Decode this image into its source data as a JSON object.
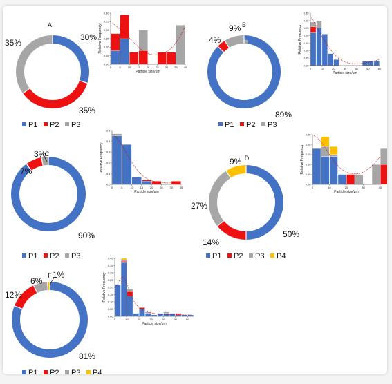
{
  "colors": {
    "P1": "#4472c4",
    "P2": "#ee1111",
    "P3": "#a6a6a6",
    "P4": "#ffc000"
  },
  "chart_data": [
    {
      "id": "A",
      "type": "pie",
      "letter": "A",
      "labels": [
        "P1",
        "P2",
        "P3"
      ],
      "values": [
        30,
        35,
        35
      ],
      "pct_labels": [
        "30%",
        "35%",
        "35%"
      ],
      "legend": [
        "P1",
        "P2",
        "P3"
      ]
    },
    {
      "id": "A-hist",
      "type": "bar",
      "stacked": true,
      "xlabel": "Particle size/μm",
      "ylabel": "Relative Frequency",
      "xlim": [
        0,
        40
      ],
      "ylim": [
        0,
        0.3
      ],
      "xticks": [
        "0",
        "5",
        "10",
        "15",
        "20",
        "25",
        "30",
        "35",
        "40"
      ],
      "yticks": [
        "0.00",
        "0.05",
        "0.10",
        "0.15",
        "0.20",
        "0.25",
        "0.30"
      ],
      "categories": [
        2.5,
        7.5,
        12.5,
        17.5,
        22.5,
        27.5,
        32.5,
        37.5
      ],
      "series": [
        {
          "name": "P1",
          "values": [
            0.08,
            0.15,
            0,
            0,
            0,
            0,
            0,
            0
          ]
        },
        {
          "name": "P2",
          "values": [
            0.1,
            0.14,
            0.07,
            0.08,
            0,
            0.07,
            0.07,
            0
          ]
        },
        {
          "name": "P3",
          "values": [
            0,
            0,
            0,
            0.12,
            0,
            0,
            0,
            0.23
          ]
        }
      ],
      "fit_curve": [
        [
          1,
          0.24
        ],
        [
          6,
          0.2
        ],
        [
          12,
          0.13
        ],
        [
          18,
          0.07
        ],
        [
          24,
          0.05
        ],
        [
          30,
          0.07
        ],
        [
          35,
          0.12
        ],
        [
          40,
          0.22
        ]
      ]
    },
    {
      "id": "B",
      "type": "pie",
      "letter": "B",
      "labels": [
        "P1",
        "P2",
        "P3"
      ],
      "values": [
        89,
        4,
        9
      ],
      "pct_labels": [
        "89%",
        "4%",
        "9%"
      ],
      "legend": [
        "P1",
        "P2",
        "P3"
      ]
    },
    {
      "id": "B-hist",
      "type": "bar",
      "stacked": true,
      "xlabel": "Particle size/μm",
      "ylabel": "Relative Frequency",
      "xlim": [
        0,
        60
      ],
      "ylim": [
        0,
        0.35
      ],
      "xticks": [
        "0",
        "10",
        "20",
        "30",
        "40",
        "50",
        "60"
      ],
      "yticks": [
        "0.00",
        "0.05",
        "0.10",
        "0.15",
        "0.20",
        "0.25",
        "0.30",
        "0.35"
      ],
      "categories": [
        2.5,
        7.5,
        12.5,
        17.5,
        22.5,
        47.5,
        52.5,
        57.5
      ],
      "series": [
        {
          "name": "P1",
          "values": [
            0.22,
            0.25,
            0.21,
            0.08,
            0.04,
            0.03,
            0.03,
            0.03
          ]
        },
        {
          "name": "P2",
          "values": [
            0.04,
            0,
            0,
            0,
            0,
            0,
            0,
            0
          ]
        },
        {
          "name": "P3",
          "values": [
            0.03,
            0.05,
            0,
            0,
            0,
            0,
            0,
            0
          ]
        }
      ],
      "fit_curve": [
        [
          1,
          0.32
        ],
        [
          8,
          0.22
        ],
        [
          15,
          0.13
        ],
        [
          22,
          0.06
        ],
        [
          30,
          0.02
        ],
        [
          40,
          0.01
        ],
        [
          50,
          0.02
        ],
        [
          60,
          0.04
        ]
      ]
    },
    {
      "id": "C",
      "type": "pie",
      "letter": "C",
      "labels": [
        "P1",
        "P2",
        "P3"
      ],
      "values": [
        90,
        7,
        3
      ],
      "pct_labels": [
        "90%",
        "7%",
        "3%"
      ],
      "legend": [
        "P1",
        "P2",
        "P3"
      ]
    },
    {
      "id": "C-hist",
      "type": "bar",
      "stacked": true,
      "xlabel": "Particle size/μm",
      "ylabel": "Relative Frequency",
      "xlim": [
        0,
        35
      ],
      "ylim": [
        0,
        0.5
      ],
      "xticks": [
        "0",
        "5",
        "10",
        "15",
        "20",
        "25",
        "30",
        "35"
      ],
      "yticks": [
        "0.0",
        "0.1",
        "0.2",
        "0.3",
        "0.4",
        "0.5"
      ],
      "categories": [
        2.5,
        7.5,
        12.5,
        17.5,
        22.5,
        32.5
      ],
      "series": [
        {
          "name": "P1",
          "values": [
            0.45,
            0.37,
            0.07,
            0.03,
            0,
            0
          ]
        },
        {
          "name": "P2",
          "values": [
            0,
            0,
            0,
            0.01,
            0.03,
            0.03
          ]
        },
        {
          "name": "P3",
          "values": [
            0.02,
            0,
            0,
            0,
            0,
            0
          ]
        }
      ],
      "fit_curve": [
        [
          1,
          0.46
        ],
        [
          5,
          0.37
        ],
        [
          10,
          0.2
        ],
        [
          15,
          0.08
        ],
        [
          20,
          0.03
        ],
        [
          27,
          0.01
        ],
        [
          33,
          0.02
        ]
      ]
    },
    {
      "id": "D",
      "type": "pie",
      "letter": "D",
      "labels": [
        "P1",
        "P2",
        "P3",
        "P4"
      ],
      "values": [
        50,
        14,
        27,
        9
      ],
      "pct_labels": [
        "50%",
        "14%",
        "27%",
        "9%"
      ],
      "legend": [
        "P1",
        "P2",
        "P3",
        "P4"
      ]
    },
    {
      "id": "D-hist",
      "type": "bar",
      "stacked": true,
      "xlabel": "Particle size/μm",
      "ylabel": "Relative Frequency",
      "xlim": [
        0,
        40
      ],
      "ylim": [
        0,
        0.25
      ],
      "xticks": [
        "0",
        "10",
        "20",
        "30",
        "40"
      ],
      "yticks": [
        "0.00",
        "0.05",
        "0.10",
        "0.15",
        "0.20",
        "0.25"
      ],
      "categories": [
        2.5,
        7.5,
        12.5,
        17.5,
        22.5,
        27.5,
        37.5,
        42.5
      ],
      "series": [
        {
          "name": "P1",
          "values": [
            0.18,
            0.14,
            0.14,
            0.05,
            0,
            0,
            0,
            0
          ]
        },
        {
          "name": "P2",
          "values": [
            0,
            0,
            0,
            0,
            0.05,
            0,
            0,
            0.1
          ]
        },
        {
          "name": "P3",
          "values": [
            0,
            0.05,
            0.01,
            0,
            0,
            0.05,
            0.1,
            0.08
          ]
        },
        {
          "name": "P4",
          "values": [
            0,
            0.05,
            0.04,
            0,
            0,
            0,
            0,
            0
          ]
        }
      ],
      "fit_curve": [
        [
          0,
          0.3
        ],
        [
          5,
          0.22
        ],
        [
          10,
          0.15
        ],
        [
          15,
          0.09
        ],
        [
          20,
          0.06
        ],
        [
          25,
          0.05
        ],
        [
          30,
          0.06
        ],
        [
          35,
          0.09
        ],
        [
          40,
          0.14
        ]
      ]
    },
    {
      "id": "F",
      "type": "pie",
      "letter": "F",
      "labels": [
        "P1",
        "P2",
        "P3",
        "P4"
      ],
      "values": [
        81,
        12,
        6,
        1
      ],
      "pct_labels": [
        "81%",
        "12%",
        "6%",
        "1%"
      ],
      "legend": [
        "P1",
        "P2",
        "P3",
        "P4"
      ]
    },
    {
      "id": "F-hist",
      "type": "bar",
      "stacked": true,
      "xlabel": "Particle size/μm",
      "ylabel": "Relative Frequency",
      "xlim": [
        0,
        65
      ],
      "ylim": [
        0,
        0.4
      ],
      "xticks": [
        "0",
        "10",
        "20",
        "30",
        "40",
        "50",
        "60"
      ],
      "yticks": [
        "0.00",
        "0.05",
        "0.10",
        "0.15",
        "0.20",
        "0.25",
        "0.30",
        "0.35",
        "0.40"
      ],
      "categories": [
        2.5,
        7.5,
        12.5,
        17.5,
        22.5,
        27.5,
        32.5,
        37.5,
        42.5,
        47.5,
        52.5,
        57.5,
        62.5
      ],
      "series": [
        {
          "name": "P1",
          "values": [
            0.22,
            0.37,
            0.14,
            0.02,
            0.05,
            0.02,
            0.01,
            0.02,
            0.02,
            0.02,
            0.01,
            0.01,
            0.01
          ]
        },
        {
          "name": "P2",
          "values": [
            0,
            0.01,
            0.03,
            0,
            0.01,
            0,
            0,
            0,
            0,
            0,
            0.01,
            0,
            0
          ]
        },
        {
          "name": "P3",
          "values": [
            0,
            0.01,
            0.02,
            0,
            0,
            0.01,
            0,
            0,
            0.01,
            0,
            0,
            0,
            0
          ]
        },
        {
          "name": "P4",
          "values": [
            0,
            0.01,
            0,
            0,
            0,
            0,
            0,
            0,
            0,
            0,
            0,
            0,
            0
          ]
        }
      ],
      "fit_curve": [
        [
          1,
          0.2
        ],
        [
          7,
          0.3
        ],
        [
          12,
          0.17
        ],
        [
          17,
          0.08
        ],
        [
          25,
          0.03
        ],
        [
          40,
          0.01
        ],
        [
          63,
          0.01
        ]
      ]
    }
  ]
}
